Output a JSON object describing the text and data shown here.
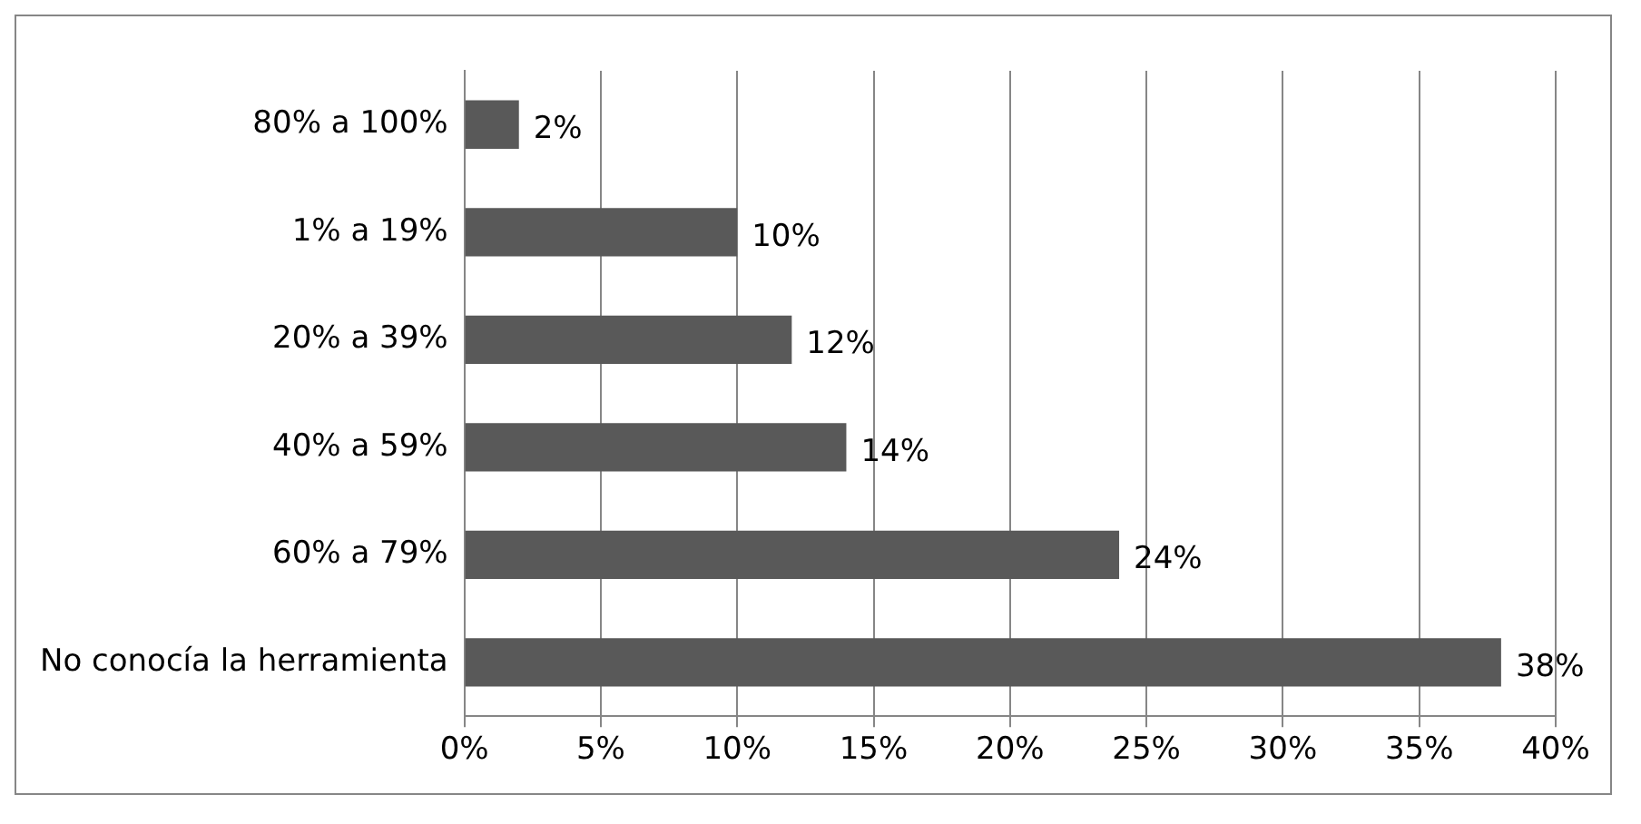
{
  "chart_data": {
    "type": "bar",
    "orientation": "horizontal",
    "categories": [
      "80% a 100%",
      "1% a 19%",
      "20% a 39%",
      "40% a 59%",
      "60% a 79%",
      "No conocía la herramienta"
    ],
    "values": [
      2,
      10,
      12,
      14,
      24,
      38
    ],
    "value_labels": [
      "2%",
      "10%",
      "12%",
      "14%",
      "24%",
      "38%"
    ],
    "color": "#595959",
    "xlim": [
      0,
      40
    ],
    "xticks": [
      {
        "value": 0,
        "label": "0%"
      },
      {
        "value": 5,
        "label": "5%"
      },
      {
        "value": 10,
        "label": "10%"
      },
      {
        "value": 15,
        "label": "15%"
      },
      {
        "value": 20,
        "label": "20%"
      },
      {
        "value": 25,
        "label": "25%"
      },
      {
        "value": 30,
        "label": "30%"
      },
      {
        "value": 35,
        "label": "35%"
      },
      {
        "value": 40,
        "label": "40%"
      }
    ],
    "grid": "x",
    "legend": false
  }
}
